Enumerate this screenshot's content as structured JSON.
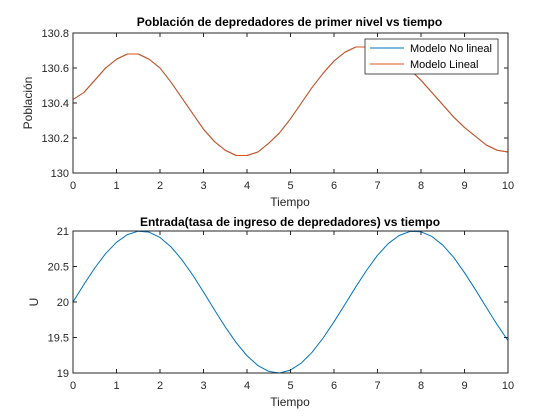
{
  "chart_data": [
    {
      "type": "line",
      "title": "Población de depredadores de primer nivel vs tiempo",
      "xlabel": "Tiempo",
      "ylabel": "Población",
      "xlim": [
        0,
        10
      ],
      "ylim": [
        130,
        130.8
      ],
      "xticks": [
        0,
        1,
        2,
        3,
        4,
        5,
        6,
        7,
        8,
        9,
        10
      ],
      "yticks": [
        130,
        130.2,
        130.4,
        130.6,
        130.8
      ],
      "ytick_labels": [
        "130",
        "130.2",
        "130.4",
        "130.6",
        "130.8"
      ],
      "legend": "top-right",
      "grid": false,
      "series": [
        {
          "name": "Modelo No lineal",
          "color": "#0072BD",
          "x": [
            0,
            0.25,
            0.5,
            0.75,
            1,
            1.25,
            1.5,
            1.75,
            2,
            2.25,
            2.5,
            2.75,
            3,
            3.25,
            3.5,
            3.75,
            4,
            4.25,
            4.5,
            4.75,
            5,
            5.25,
            5.5,
            5.75,
            6,
            6.25,
            6.5,
            6.75,
            7,
            7.25,
            7.5,
            7.75,
            8,
            8.25,
            8.5,
            8.75,
            9,
            9.25,
            9.5,
            9.75,
            10
          ],
          "y": [
            130.42,
            130.46,
            130.53,
            130.6,
            130.65,
            130.68,
            130.68,
            130.65,
            130.6,
            130.52,
            130.43,
            130.34,
            130.25,
            130.18,
            130.13,
            130.1,
            130.1,
            130.12,
            130.17,
            130.23,
            130.31,
            130.4,
            130.49,
            130.57,
            130.64,
            130.69,
            130.72,
            130.72,
            130.71,
            130.68,
            130.64,
            130.59,
            130.53,
            130.46,
            130.39,
            130.32,
            130.26,
            130.21,
            130.16,
            130.13,
            130.12
          ]
        },
        {
          "name": "Modelo Lineal",
          "color": "#D95319",
          "x": [
            0,
            0.25,
            0.5,
            0.75,
            1,
            1.25,
            1.5,
            1.75,
            2,
            2.25,
            2.5,
            2.75,
            3,
            3.25,
            3.5,
            3.75,
            4,
            4.25,
            4.5,
            4.75,
            5,
            5.25,
            5.5,
            5.75,
            6,
            6.25,
            6.5,
            6.75,
            7,
            7.25,
            7.5,
            7.75,
            8,
            8.25,
            8.5,
            8.75,
            9,
            9.25,
            9.5,
            9.75,
            10
          ],
          "y": [
            130.42,
            130.46,
            130.53,
            130.6,
            130.65,
            130.68,
            130.68,
            130.65,
            130.6,
            130.52,
            130.43,
            130.34,
            130.25,
            130.18,
            130.13,
            130.1,
            130.1,
            130.12,
            130.17,
            130.23,
            130.31,
            130.4,
            130.49,
            130.57,
            130.64,
            130.69,
            130.72,
            130.72,
            130.71,
            130.68,
            130.64,
            130.59,
            130.53,
            130.46,
            130.39,
            130.32,
            130.26,
            130.21,
            130.16,
            130.13,
            130.12
          ]
        }
      ]
    },
    {
      "type": "line",
      "title": "Entrada(tasa de ingreso de depredadores) vs tiempo",
      "xlabel": "Tiempo",
      "ylabel": "U",
      "xlim": [
        0,
        10
      ],
      "ylim": [
        19,
        21
      ],
      "xticks": [
        0,
        1,
        2,
        3,
        4,
        5,
        6,
        7,
        8,
        9,
        10
      ],
      "yticks": [
        19,
        19.5,
        20,
        20.5,
        21
      ],
      "ytick_labels": [
        "19",
        "19.5",
        "20",
        "20.5",
        "21"
      ],
      "grid": false,
      "series": [
        {
          "color": "#0072BD",
          "x": [
            0,
            0.25,
            0.5,
            0.75,
            1,
            1.25,
            1.5,
            1.75,
            2,
            2.25,
            2.5,
            2.75,
            3,
            3.25,
            3.5,
            3.75,
            4,
            4.25,
            4.5,
            4.75,
            5,
            5.25,
            5.5,
            5.75,
            6,
            6.25,
            6.5,
            6.75,
            7,
            7.25,
            7.5,
            7.75,
            8,
            8.25,
            8.5,
            8.75,
            9,
            9.25,
            9.5,
            9.75,
            10
          ],
          "y": [
            20.0,
            20.247,
            20.479,
            20.682,
            20.841,
            20.949,
            20.997,
            20.984,
            20.909,
            20.778,
            20.598,
            20.382,
            20.141,
            19.891,
            19.649,
            19.429,
            19.243,
            19.105,
            19.022,
            19.0,
            19.041,
            19.141,
            19.295,
            19.493,
            19.721,
            19.965,
            20.212,
            20.447,
            20.657,
            20.825,
            20.938,
            20.994,
            20.989,
            20.923,
            20.802,
            20.629,
            20.413,
            20.175,
            19.926,
            19.682,
            19.456
          ]
        }
      ]
    }
  ]
}
